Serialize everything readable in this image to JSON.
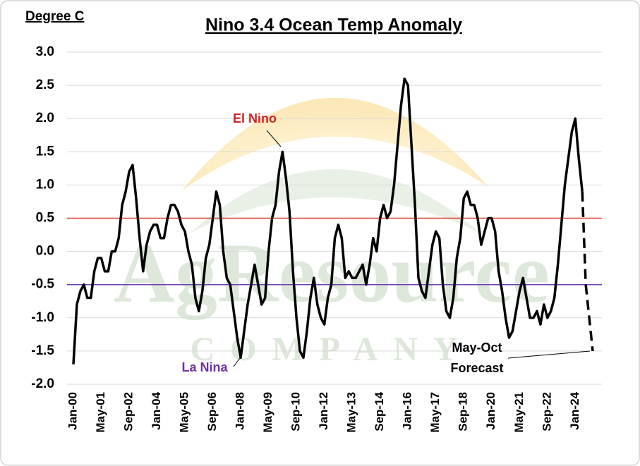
{
  "chart_data": {
    "type": "line",
    "title": "Nino 3.4 Ocean Temp Anomaly",
    "y_label": "Degree C",
    "watermark": "AgResource",
    "watermark_sub": "COMPANY",
    "categories": [
      "Jan-00",
      null,
      null,
      null,
      null,
      null,
      null,
      null,
      "May-01",
      null,
      null,
      null,
      null,
      null,
      null,
      null,
      "Sep-02",
      null,
      null,
      null,
      null,
      null,
      null,
      null,
      "Jan-04",
      null,
      null,
      null,
      null,
      null,
      null,
      null,
      "May-05",
      null,
      null,
      null,
      null,
      null,
      null,
      null,
      "Sep-06",
      null,
      null,
      null,
      null,
      null,
      null,
      null,
      "Jan-08",
      null,
      null,
      null,
      null,
      null,
      null,
      null,
      "May-09",
      null,
      null,
      null,
      null,
      null,
      null,
      null,
      "Sep-10",
      null,
      null,
      null,
      null,
      null,
      null,
      null,
      "Jan-12",
      null,
      null,
      null,
      null,
      null,
      null,
      null,
      "May-13",
      null,
      null,
      null,
      null,
      null,
      null,
      null,
      "Sep-14",
      null,
      null,
      null,
      null,
      null,
      null,
      null,
      "Jan-16",
      null,
      null,
      null,
      null,
      null,
      null,
      null,
      "May-17",
      null,
      null,
      null,
      null,
      null,
      null,
      null,
      "Sep-18",
      null,
      null,
      null,
      null,
      null,
      null,
      null,
      "Jan-20",
      null,
      null,
      null,
      null,
      null,
      null,
      null,
      "May-21",
      null,
      null,
      null,
      null,
      null,
      null,
      null,
      "Sep-22",
      null,
      null,
      null,
      null,
      null,
      null,
      null,
      "Jan-24",
      null,
      null,
      null,
      null,
      null
    ],
    "series": [
      {
        "color": "#000000",
        "dashed": false,
        "values": [
          -1.7,
          -0.8,
          -0.6,
          -0.5,
          -0.7,
          -0.7,
          -0.3,
          -0.1,
          -0.1,
          -0.3,
          -0.3,
          0.0,
          0.0,
          0.2,
          0.7,
          0.9,
          1.2,
          1.3,
          0.8,
          0.2,
          -0.3,
          0.1,
          0.3,
          0.4,
          0.4,
          0.2,
          0.2,
          0.5,
          0.7,
          0.7,
          0.6,
          0.4,
          0.3,
          0.0,
          -0.2,
          -0.7,
          -0.9,
          -0.6,
          -0.1,
          0.1,
          0.5,
          0.9,
          0.7,
          0.0,
          -0.4,
          -0.5,
          -0.9,
          -1.3,
          -1.6,
          -1.2,
          -0.8,
          -0.5,
          -0.2,
          -0.5,
          -0.8,
          -0.7,
          0.0,
          0.5,
          0.7,
          1.2,
          1.5,
          1.1,
          0.6,
          -0.3,
          -1.0,
          -1.5,
          -1.6,
          -1.2,
          -0.7,
          -0.4,
          -0.8,
          -1.0,
          -1.1,
          -0.7,
          -0.5,
          0.2,
          0.4,
          0.2,
          -0.4,
          -0.3,
          -0.4,
          -0.4,
          -0.3,
          -0.2,
          -0.5,
          -0.2,
          0.2,
          0.0,
          0.5,
          0.7,
          0.5,
          0.6,
          1.0,
          1.6,
          2.2,
          2.6,
          2.5,
          1.6,
          0.7,
          -0.4,
          -0.6,
          -0.7,
          -0.3,
          0.1,
          0.3,
          0.2,
          -0.5,
          -0.9,
          -1.0,
          -0.7,
          -0.1,
          0.2,
          0.8,
          0.9,
          0.7,
          0.7,
          0.5,
          0.1,
          0.3,
          0.5,
          0.5,
          0.3,
          -0.3,
          -0.6,
          -1.0,
          -1.3,
          -1.2,
          -0.9,
          -0.6,
          -0.4,
          -0.7,
          -1.0,
          -1.0,
          -0.9,
          -1.1,
          -0.8,
          -1.0,
          -0.9,
          -0.7,
          -0.2,
          0.4,
          1.0,
          1.4,
          1.8,
          2.0,
          1.4,
          0.9,
          null,
          null,
          null
        ]
      },
      {
        "color": "#000000",
        "dashed": true,
        "values": [
          null,
          null,
          null,
          null,
          null,
          null,
          null,
          null,
          null,
          null,
          null,
          null,
          null,
          null,
          null,
          null,
          null,
          null,
          null,
          null,
          null,
          null,
          null,
          null,
          null,
          null,
          null,
          null,
          null,
          null,
          null,
          null,
          null,
          null,
          null,
          null,
          null,
          null,
          null,
          null,
          null,
          null,
          null,
          null,
          null,
          null,
          null,
          null,
          null,
          null,
          null,
          null,
          null,
          null,
          null,
          null,
          null,
          null,
          null,
          null,
          null,
          null,
          null,
          null,
          null,
          null,
          null,
          null,
          null,
          null,
          null,
          null,
          null,
          null,
          null,
          null,
          null,
          null,
          null,
          null,
          null,
          null,
          null,
          null,
          null,
          null,
          null,
          null,
          null,
          null,
          null,
          null,
          null,
          null,
          null,
          null,
          null,
          null,
          null,
          null,
          null,
          null,
          null,
          null,
          null,
          null,
          null,
          null,
          null,
          null,
          null,
          null,
          null,
          null,
          null,
          null,
          null,
          null,
          null,
          null,
          null,
          null,
          null,
          null,
          null,
          null,
          null,
          null,
          null,
          null,
          null,
          null,
          null,
          null,
          null,
          null,
          null,
          null,
          null,
          null,
          null,
          null,
          null,
          null,
          null,
          null,
          0.9,
          -0.5,
          -1.0,
          -1.5
        ]
      }
    ],
    "ref_lines": [
      {
        "value": 0.5,
        "color": "#e03a2f"
      },
      {
        "value": -0.5,
        "color": "#7040b0"
      }
    ],
    "annotations": [
      {
        "text": "El Nino",
        "color": "#d42020"
      },
      {
        "text": "La Nina",
        "color": "#7030a0"
      },
      {
        "text": "May-Oct",
        "color": "#000000"
      },
      {
        "text": "Forecast",
        "color": "#000000"
      }
    ],
    "ylim": [
      -2.0,
      3.0
    ],
    "yticks": [
      {
        "value": 3.0,
        "label": "3.0"
      },
      {
        "value": 2.5,
        "label": "2.5"
      },
      {
        "value": 2.0,
        "label": "2.0"
      },
      {
        "value": 1.5,
        "label": "1.5"
      },
      {
        "value": 1.0,
        "label": "1.0"
      },
      {
        "value": 0.5,
        "label": "0.5"
      },
      {
        "value": 0.0,
        "label": "0.0"
      },
      {
        "value": -0.5,
        "label": "-0.5"
      },
      {
        "value": -1.0,
        "label": "-1.0"
      },
      {
        "value": -1.5,
        "label": "-1.5"
      },
      {
        "value": -2.0,
        "label": "-2.0"
      }
    ],
    "grid": true
  }
}
